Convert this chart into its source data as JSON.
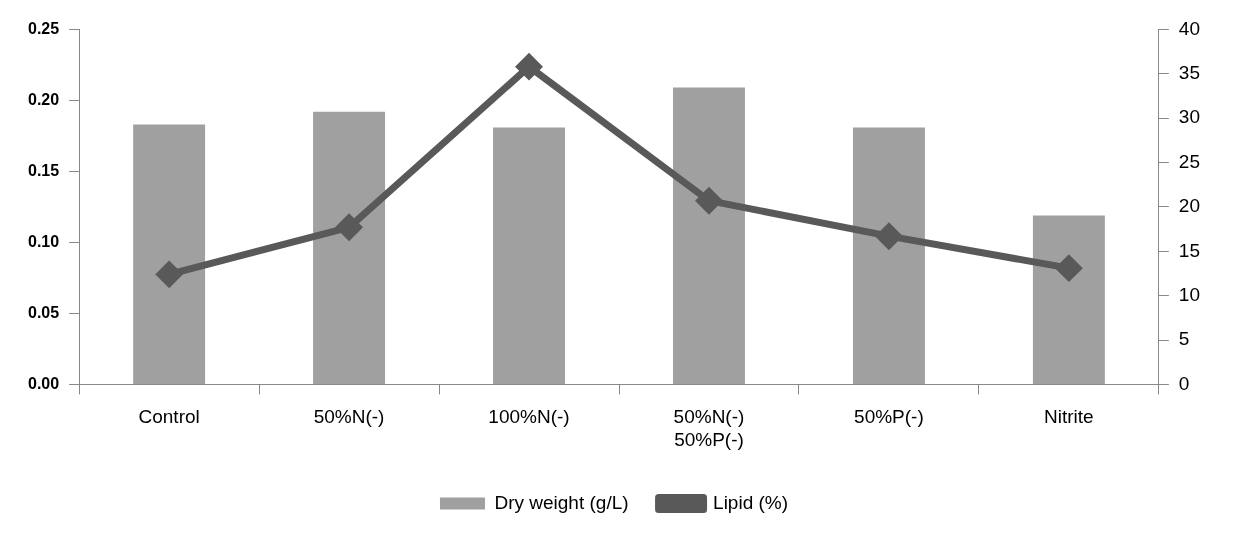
{
  "chart_data": {
    "type": "bar",
    "categories": [
      "Control",
      "50%N(-)",
      "100%N(-)",
      "50%N(-)\n50%P(-)",
      "50%P(-)",
      "Nitrite"
    ],
    "series": [
      {
        "name": "Dry weight (g/L)",
        "color": "#a0a0a0",
        "values": [
          0.183,
          0.192,
          0.181,
          0.209,
          0.181,
          0.119
        ]
      },
      {
        "name": "Lipid (%)",
        "type": "line",
        "axis": "y2",
        "color": "#595959",
        "marker": "diamond",
        "values": [
          12.4,
          17.7,
          35.8,
          20.7,
          16.7,
          13.1
        ]
      }
    ],
    "ylim": [
      0,
      0.25
    ],
    "yticks": [
      {
        "value": 0,
        "label": "0.00"
      },
      {
        "value": 0.05,
        "label": "0.05"
      },
      {
        "value": 0.1,
        "label": "0.10"
      },
      {
        "value": 0.15,
        "label": "0.15"
      },
      {
        "value": 0.2,
        "label": "0.20"
      },
      {
        "value": 0.25,
        "label": "0.25"
      }
    ],
    "y2lim": [
      0,
      40
    ],
    "y2ticks": [
      0,
      5,
      10,
      15,
      20,
      25,
      30,
      35,
      40
    ],
    "grid": false,
    "legend": "bottom"
  }
}
